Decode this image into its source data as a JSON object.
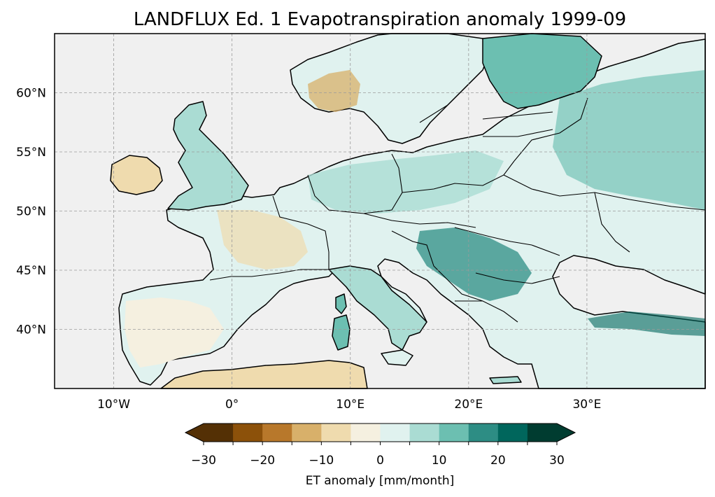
{
  "title": "LANDFLUX Ed. 1 Evapotranspiration anomaly 1999-09",
  "map": {
    "region": "Europe",
    "extent": {
      "lon_min": -15,
      "lon_max": 40,
      "lat_min": 35,
      "lat_max": 65
    },
    "lon_ticks": [
      {
        "value": -10,
        "label": "10°W"
      },
      {
        "value": 0,
        "label": "0°"
      },
      {
        "value": 10,
        "label": "10°E"
      },
      {
        "value": 20,
        "label": "20°E"
      },
      {
        "value": 30,
        "label": "30°E"
      }
    ],
    "lat_ticks": [
      {
        "value": 60,
        "label": "60°N"
      },
      {
        "value": 55,
        "label": "55°N"
      },
      {
        "value": 50,
        "label": "50°N"
      },
      {
        "value": 45,
        "label": "45°N"
      },
      {
        "value": 40,
        "label": "40°N"
      }
    ],
    "gridlines": true,
    "ocean_color": "#f0f0f0",
    "coastline_color": "#000000"
  },
  "colorbar": {
    "label": "ET anomaly [mm/month]",
    "min": -30,
    "max": 30,
    "step": 5,
    "tick_values": [
      -30,
      -20,
      -10,
      0,
      10,
      20,
      30
    ],
    "tick_labels": [
      "−30",
      "−20",
      "−10",
      "0",
      "10",
      "20",
      "30"
    ],
    "colors": [
      "#543005",
      "#8c510a",
      "#b8782b",
      "#d8b06a",
      "#efdbae",
      "#f5f0e0",
      "#e0f2ef",
      "#aadcd3",
      "#6cbfb1",
      "#2d8d84",
      "#00665c",
      "#003c30"
    ],
    "extend": "both"
  }
}
